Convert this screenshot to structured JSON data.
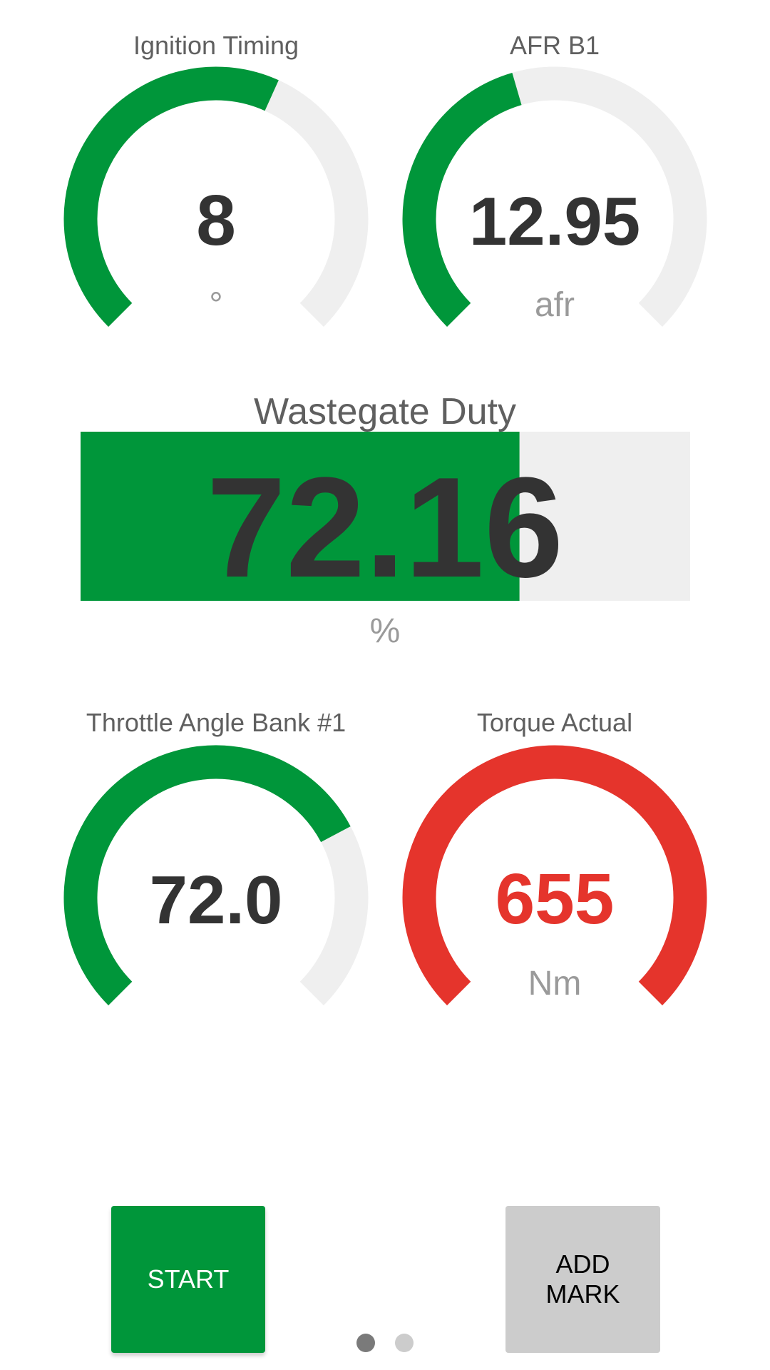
{
  "colors": {
    "green": "#00963a",
    "red": "#e5342c",
    "track": "#efefef",
    "dot_active": "#7a7a7a",
    "dot_inactive": "#cccccc",
    "button_grey": "#cccccc"
  },
  "gauges": [
    {
      "title": "Ignition Timing",
      "value": "8",
      "unit": "°",
      "fill": 0.59,
      "color": "#00963a",
      "value_color": "#333333"
    },
    {
      "title": "AFR B1",
      "value": "12.95",
      "unit": "afr",
      "fill": 0.44,
      "color": "#00963a",
      "value_color": "#333333"
    },
    {
      "title": "Throttle Angle Bank #1",
      "value": "72.0",
      "unit": "",
      "fill": 0.73,
      "color": "#00963a",
      "value_color": "#333333"
    },
    {
      "title": "Torque Actual",
      "value": "655",
      "unit": "Nm",
      "fill": 1.0,
      "color": "#e5342c",
      "value_color": "#e5342c"
    }
  ],
  "bar": {
    "title": "Wastegate Duty",
    "value": "72.16",
    "unit": "%",
    "fill": 0.72
  },
  "buttons": {
    "start": "START",
    "add_mark": "ADD MARK"
  },
  "pager": {
    "pages": 2,
    "active": 0
  }
}
